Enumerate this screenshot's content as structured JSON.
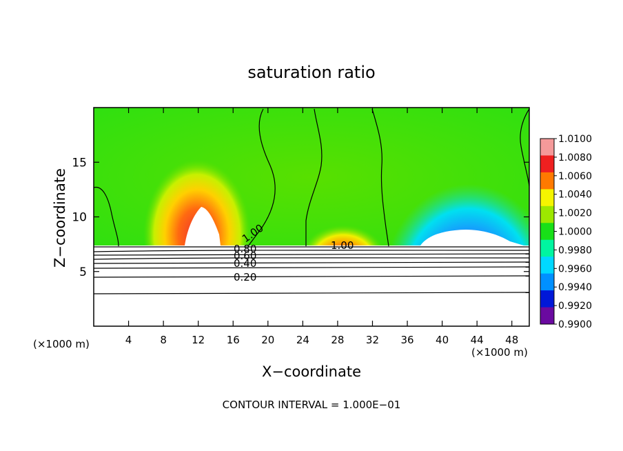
{
  "chart_data": {
    "type": "heatmap",
    "title": "saturation ratio",
    "xlabel": "X−coordinate",
    "ylabel": "Z−coordinate",
    "x_unit_left": "(×1000 m)",
    "x_unit_right": "(×1000 m)",
    "footer": "CONTOUR INTERVAL = 1.000E−01",
    "xlim": [
      0,
      50
    ],
    "ylim": [
      0,
      20
    ],
    "x_ticks": [
      4,
      8,
      12,
      16,
      20,
      24,
      28,
      32,
      36,
      40,
      44,
      48
    ],
    "y_ticks": [
      5,
      10,
      15
    ],
    "x_tick_labels": [
      "4",
      "8",
      "12",
      "16",
      "20",
      "24",
      "28",
      "32",
      "36",
      "40",
      "44",
      "48"
    ],
    "y_tick_labels": [
      "5",
      "10",
      "15"
    ],
    "colorbar": {
      "levels": [
        "1.0100",
        "1.0080",
        "1.0060",
        "1.0040",
        "1.0020",
        "1.0000",
        "0.9980",
        "0.9960",
        "0.9940",
        "0.9920",
        "0.9900"
      ],
      "colors": [
        "#f59a9a",
        "#ef2020",
        "#ff7a00",
        "#f5f500",
        "#9de800",
        "#18e018",
        "#00f5a0",
        "#00d8ff",
        "#0090ff",
        "#0018d8",
        "#6a0aa0"
      ]
    },
    "contour_labels": [
      "1.00",
      "1.00",
      "0.80",
      "0.60",
      "0.40",
      "0.20"
    ]
  }
}
